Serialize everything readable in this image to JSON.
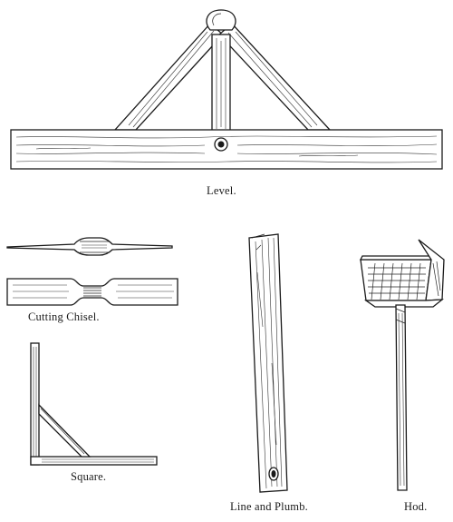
{
  "figures": {
    "level": {
      "caption": "Level.",
      "icon": "level-icon"
    },
    "chisel": {
      "caption": "Cutting Chisel.",
      "icon": "chisel-icon"
    },
    "square": {
      "caption": "Square.",
      "icon": "square-icon"
    },
    "plumb": {
      "caption": "Line and Plumb.",
      "icon": "plumb-icon"
    },
    "hod": {
      "caption": "Hod.",
      "icon": "hod-icon"
    }
  },
  "colors": {
    "ink": "#1a1a1a",
    "paper": "#ffffff"
  }
}
